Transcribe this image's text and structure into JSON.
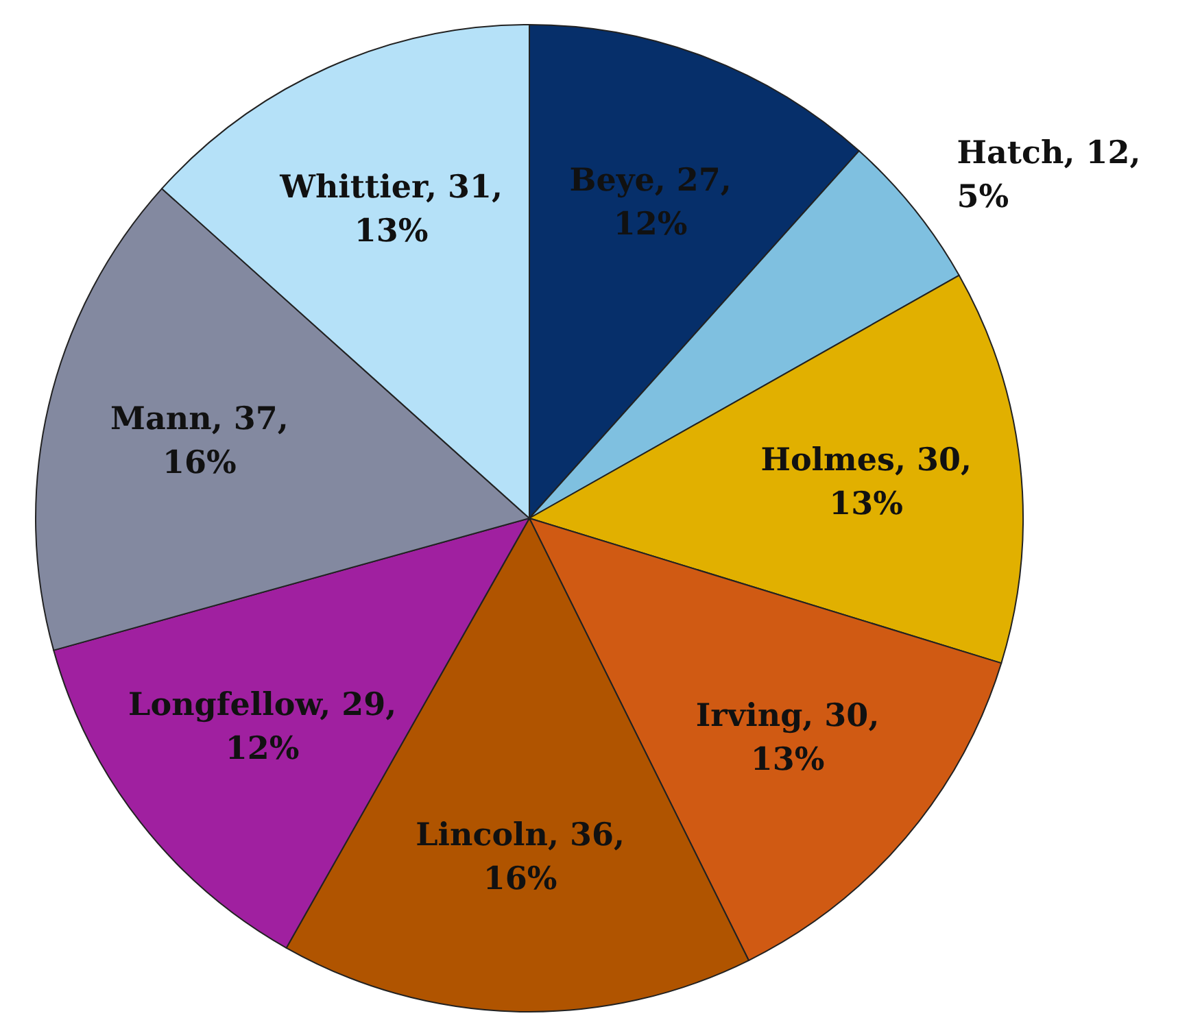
{
  "chart_data": {
    "type": "pie",
    "categories": [
      "Beye",
      "Hatch",
      "Holmes",
      "Irving",
      "Lincoln",
      "Longfellow",
      "Mann",
      "Whittier"
    ],
    "values": [
      27,
      12,
      30,
      30,
      36,
      29,
      37,
      31
    ],
    "value_labels": [
      "27, 12%",
      "12, 5%",
      "30, 13%",
      "30, 13%",
      "36, 16%",
      "29, 12%",
      "37, 16%",
      "31, 13%"
    ],
    "colors": [
      "#062f6a",
      "#7fc0e0",
      "#e1b000",
      "#d05a13",
      "#b05400",
      "#a020a0",
      "#8389a0",
      "#b5e1f8"
    ],
    "legend": false
  }
}
